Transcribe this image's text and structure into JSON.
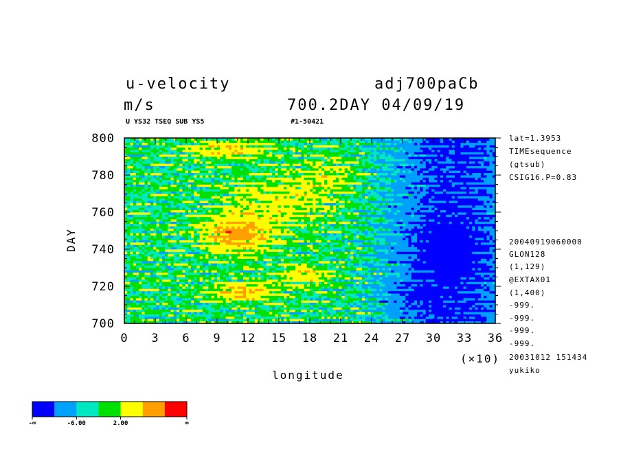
{
  "header": {
    "title_left": "u-velocity",
    "unit_left": "m/s",
    "title_right": "adj700paCb",
    "subtitle_right": "700.2DAY 04/09/19",
    "sub_small_left": "U YS32 TSEQ SUB YS5",
    "sub_small_mid": "#1-50421"
  },
  "side_info": {
    "top": [
      "lat=1.3953",
      "TIMEsequence",
      "(gtsub)",
      "CSIG16.P=0.83"
    ],
    "bottom": [
      "20040919060000",
      "GLON128",
      "(1,129)",
      "@EXTAX01",
      "(1,400)",
      "-999.",
      "-999.",
      "-999.",
      "-999.",
      "20031012 151434",
      "yukiko"
    ]
  },
  "colorbar": {
    "colors": [
      "#0000ff",
      "#00a0ff",
      "#00e8c0",
      "#00e000",
      "#ffff00",
      "#ffa000",
      "#ff0000"
    ],
    "labels": [
      "-∞",
      "-6.00",
      "2.00",
      "∞"
    ]
  },
  "chart_data": {
    "type": "heatmap",
    "title": "u-velocity",
    "xlabel": "longitude",
    "ylabel": "DAY",
    "x_multiplier": "(×10)",
    "x_ticks": [
      "0",
      "3",
      "6",
      "9",
      "12",
      "15",
      "18",
      "21",
      "24",
      "27",
      "30",
      "33",
      "36"
    ],
    "y_ticks": [
      "700",
      "720",
      "740",
      "760",
      "780",
      "800"
    ],
    "xlim": [
      0,
      36
    ],
    "ylim": [
      700,
      800
    ],
    "color_levels": [
      -10,
      -6,
      -2,
      2,
      6,
      10
    ],
    "regions": [
      {
        "x_range": [
          8,
          14
        ],
        "y_range": [
          740,
          756
        ],
        "level": "high (red)"
      },
      {
        "x_range": [
          9,
          14
        ],
        "y_range": [
          712,
          722
        ],
        "level": "high (red)"
      },
      {
        "x_range": [
          7,
          13
        ],
        "y_range": [
          790,
          798
        ],
        "level": "high (red)"
      },
      {
        "x_range": [
          16,
          19
        ],
        "y_range": [
          722,
          730
        ],
        "level": "high (red)"
      },
      {
        "x_range": [
          25,
          36
        ],
        "y_range": [
          700,
          800
        ],
        "level": "low (blue)"
      },
      {
        "x_range": [
          0,
          6
        ],
        "y_range": [
          700,
          800
        ],
        "level": "medium (cyan/green)"
      }
    ]
  }
}
